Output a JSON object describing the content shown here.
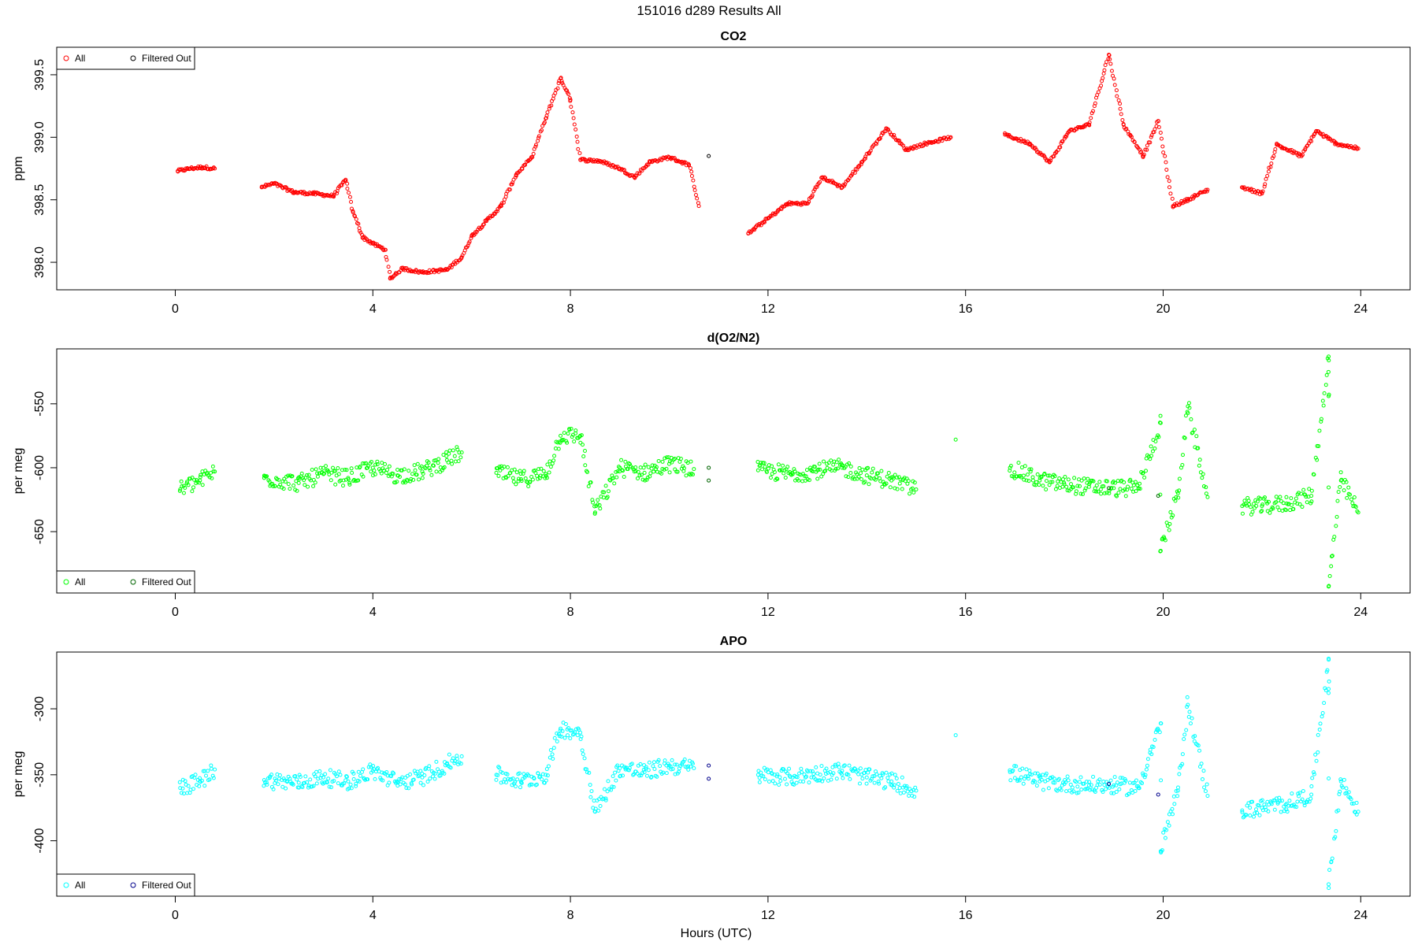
{
  "title": "151016   d289   Results All",
  "x_axis_label": "Hours (UTC)",
  "chart_data": [
    {
      "type": "scatter",
      "title": "CO2",
      "xlabel": "",
      "ylabel": "ppm",
      "xlim": [
        -2.4,
        25.0
      ],
      "ylim": [
        397.78,
        399.72
      ],
      "xticks": [
        0,
        4,
        8,
        12,
        16,
        20,
        24
      ],
      "yticks": [
        398.0,
        398.5,
        399.0,
        399.5
      ],
      "ytick_labels": [
        "398.0",
        "398.5",
        "399.0",
        "399.5"
      ],
      "legend_position": "top-left",
      "legend_entries": [
        "All",
        "Filtered Out"
      ],
      "color_all": "#ff0000",
      "color_filtered": "#000000",
      "series": [
        {
          "name": "All",
          "points": [
            [
              0.05,
              398.73
            ],
            [
              0.3,
              398.75
            ],
            [
              0.55,
              398.76
            ],
            [
              0.8,
              398.75
            ],
            [
              1.75,
              398.6
            ],
            [
              2.0,
              398.63
            ],
            [
              2.4,
              398.56
            ],
            [
              2.8,
              398.55
            ],
            [
              3.2,
              398.53
            ],
            [
              3.45,
              398.66
            ],
            [
              3.6,
              398.4
            ],
            [
              3.8,
              398.2
            ],
            [
              4.0,
              398.15
            ],
            [
              4.25,
              398.1
            ],
            [
              4.35,
              397.87
            ],
            [
              4.6,
              397.95
            ],
            [
              5.0,
              397.92
            ],
            [
              5.5,
              397.94
            ],
            [
              5.8,
              398.04
            ],
            [
              6.0,
              398.21
            ],
            [
              6.3,
              398.33
            ],
            [
              6.6,
              398.45
            ],
            [
              6.9,
              398.7
            ],
            [
              7.2,
              398.83
            ],
            [
              7.5,
              399.15
            ],
            [
              7.8,
              399.47
            ],
            [
              8.0,
              399.3
            ],
            [
              8.2,
              398.82
            ],
            [
              8.6,
              398.81
            ],
            [
              9.0,
              398.75
            ],
            [
              9.3,
              398.68
            ],
            [
              9.6,
              398.8
            ],
            [
              10.0,
              398.84
            ],
            [
              10.4,
              398.78
            ],
            [
              10.6,
              398.45
            ],
            [
              11.6,
              398.23
            ],
            [
              12.0,
              398.35
            ],
            [
              12.4,
              398.47
            ],
            [
              12.8,
              398.47
            ],
            [
              13.1,
              398.68
            ],
            [
              13.5,
              398.6
            ],
            [
              13.9,
              398.8
            ],
            [
              14.4,
              399.07
            ],
            [
              14.8,
              398.9
            ],
            [
              15.2,
              398.95
            ],
            [
              15.7,
              399.0
            ],
            [
              16.8,
              399.02
            ],
            [
              17.3,
              398.95
            ],
            [
              17.7,
              398.8
            ],
            [
              18.1,
              399.05
            ],
            [
              18.5,
              399.1
            ],
            [
              18.9,
              399.66
            ],
            [
              19.2,
              399.1
            ],
            [
              19.6,
              398.85
            ],
            [
              19.9,
              399.13
            ],
            [
              20.2,
              398.45
            ],
            [
              20.5,
              398.5
            ],
            [
              20.9,
              398.58
            ],
            [
              21.6,
              398.6
            ],
            [
              22.0,
              398.55
            ],
            [
              22.3,
              398.94
            ],
            [
              22.8,
              398.85
            ],
            [
              23.1,
              399.05
            ],
            [
              23.5,
              398.95
            ],
            [
              23.95,
              398.91
            ]
          ]
        },
        {
          "name": "Filtered Out",
          "points": [
            [
              10.8,
              398.85
            ]
          ]
        }
      ]
    },
    {
      "type": "scatter",
      "title": "d(O2/N2)",
      "xlabel": "",
      "ylabel": "per meg",
      "xlim": [
        -2.4,
        25.0
      ],
      "ylim": [
        -698.0,
        -507.0
      ],
      "xticks": [
        0,
        4,
        8,
        12,
        16,
        20,
        24
      ],
      "yticks": [
        -650,
        -600,
        -550
      ],
      "ytick_labels": [
        "-650",
        "-600",
        "-550"
      ],
      "legend_position": "bottom-left",
      "legend_entries": [
        "All",
        "Filtered Out"
      ],
      "color_all": "#00ff00",
      "color_filtered": "#006400",
      "series": [
        {
          "name": "All",
          "points": [
            [
              0.1,
              -617
            ],
            [
              0.5,
              -610
            ],
            [
              0.8,
              -603
            ],
            [
              1.8,
              -608
            ],
            [
              2.5,
              -612
            ],
            [
              3.0,
              -605
            ],
            [
              3.5,
              -608
            ],
            [
              4.0,
              -600
            ],
            [
              4.5,
              -606
            ],
            [
              5.0,
              -603
            ],
            [
              5.5,
              -594
            ],
            [
              5.8,
              -588
            ],
            [
              6.5,
              -604
            ],
            [
              7.0,
              -609
            ],
            [
              7.5,
              -605
            ],
            [
              7.8,
              -575
            ],
            [
              8.2,
              -575
            ],
            [
              8.5,
              -635
            ],
            [
              9.0,
              -600
            ],
            [
              9.5,
              -604
            ],
            [
              10.0,
              -597
            ],
            [
              10.5,
              -601
            ],
            [
              11.8,
              -602
            ],
            [
              12.5,
              -605
            ],
            [
              13.0,
              -602
            ],
            [
              13.5,
              -600
            ],
            [
              14.0,
              -606
            ],
            [
              14.5,
              -610
            ],
            [
              15.0,
              -617
            ],
            [
              15.8,
              -578
            ],
            [
              16.9,
              -600
            ],
            [
              17.5,
              -610
            ],
            [
              18.0,
              -613
            ],
            [
              18.5,
              -615
            ],
            [
              19.0,
              -616
            ],
            [
              19.5,
              -616
            ],
            [
              19.95,
              -565
            ],
            [
              19.95,
              -665
            ],
            [
              20.3,
              -620
            ],
            [
              20.5,
              -552
            ],
            [
              20.9,
              -623
            ],
            [
              21.6,
              -630
            ],
            [
              22.0,
              -630
            ],
            [
              22.5,
              -628
            ],
            [
              23.0,
              -622
            ],
            [
              23.35,
              -513
            ],
            [
              23.35,
              -544
            ],
            [
              23.35,
              -693
            ],
            [
              23.6,
              -610
            ],
            [
              23.95,
              -635
            ]
          ]
        },
        {
          "name": "Filtered Out",
          "points": [
            [
              10.8,
              -600
            ],
            [
              10.8,
              -610
            ],
            [
              18.9,
              -616
            ],
            [
              19.9,
              -622
            ]
          ]
        }
      ]
    },
    {
      "type": "scatter",
      "title": "APO",
      "xlabel": "Hours (UTC)",
      "ylabel": "per meg",
      "xlim": [
        -2.4,
        25.0
      ],
      "ylim": [
        -442.0,
        -257.0
      ],
      "xticks": [
        0,
        4,
        8,
        12,
        16,
        20,
        24
      ],
      "yticks": [
        -400,
        -350,
        -300
      ],
      "ytick_labels": [
        "-400",
        "-350",
        "-300"
      ],
      "legend_position": "bottom-left",
      "legend_entries": [
        "All",
        "Filtered Out"
      ],
      "color_all": "#00ffff",
      "color_filtered": "#00008b",
      "series": [
        {
          "name": "All",
          "points": [
            [
              0.1,
              -360
            ],
            [
              0.5,
              -355
            ],
            [
              0.8,
              -346
            ],
            [
              1.8,
              -354
            ],
            [
              2.5,
              -356
            ],
            [
              3.0,
              -352
            ],
            [
              3.5,
              -355
            ],
            [
              4.0,
              -347
            ],
            [
              4.5,
              -356
            ],
            [
              5.0,
              -352
            ],
            [
              5.5,
              -342
            ],
            [
              5.8,
              -336
            ],
            [
              6.5,
              -350
            ],
            [
              7.0,
              -355
            ],
            [
              7.5,
              -350
            ],
            [
              7.8,
              -315
            ],
            [
              8.2,
              -318
            ],
            [
              8.5,
              -378
            ],
            [
              9.0,
              -345
            ],
            [
              9.5,
              -348
            ],
            [
              10.0,
              -343
            ],
            [
              10.5,
              -345
            ],
            [
              11.8,
              -350
            ],
            [
              12.5,
              -352
            ],
            [
              13.0,
              -349
            ],
            [
              13.5,
              -347
            ],
            [
              14.0,
              -352
            ],
            [
              14.5,
              -355
            ],
            [
              15.0,
              -362
            ],
            [
              15.8,
              -320
            ],
            [
              16.9,
              -348
            ],
            [
              17.5,
              -355
            ],
            [
              18.0,
              -357
            ],
            [
              18.5,
              -358
            ],
            [
              19.0,
              -358
            ],
            [
              19.5,
              -360
            ],
            [
              19.95,
              -311
            ],
            [
              19.95,
              -408
            ],
            [
              20.3,
              -362
            ],
            [
              20.5,
              -297
            ],
            [
              20.9,
              -366
            ],
            [
              21.6,
              -377
            ],
            [
              22.0,
              -375
            ],
            [
              22.5,
              -372
            ],
            [
              23.0,
              -365
            ],
            [
              23.35,
              -262
            ],
            [
              23.35,
              -285
            ],
            [
              23.35,
              -433
            ],
            [
              23.6,
              -355
            ],
            [
              23.95,
              -378
            ]
          ]
        },
        {
          "name": "Filtered Out",
          "points": [
            [
              10.8,
              -343
            ],
            [
              10.8,
              -353
            ],
            [
              18.9,
              -357
            ],
            [
              19.9,
              -365
            ]
          ]
        }
      ]
    }
  ]
}
